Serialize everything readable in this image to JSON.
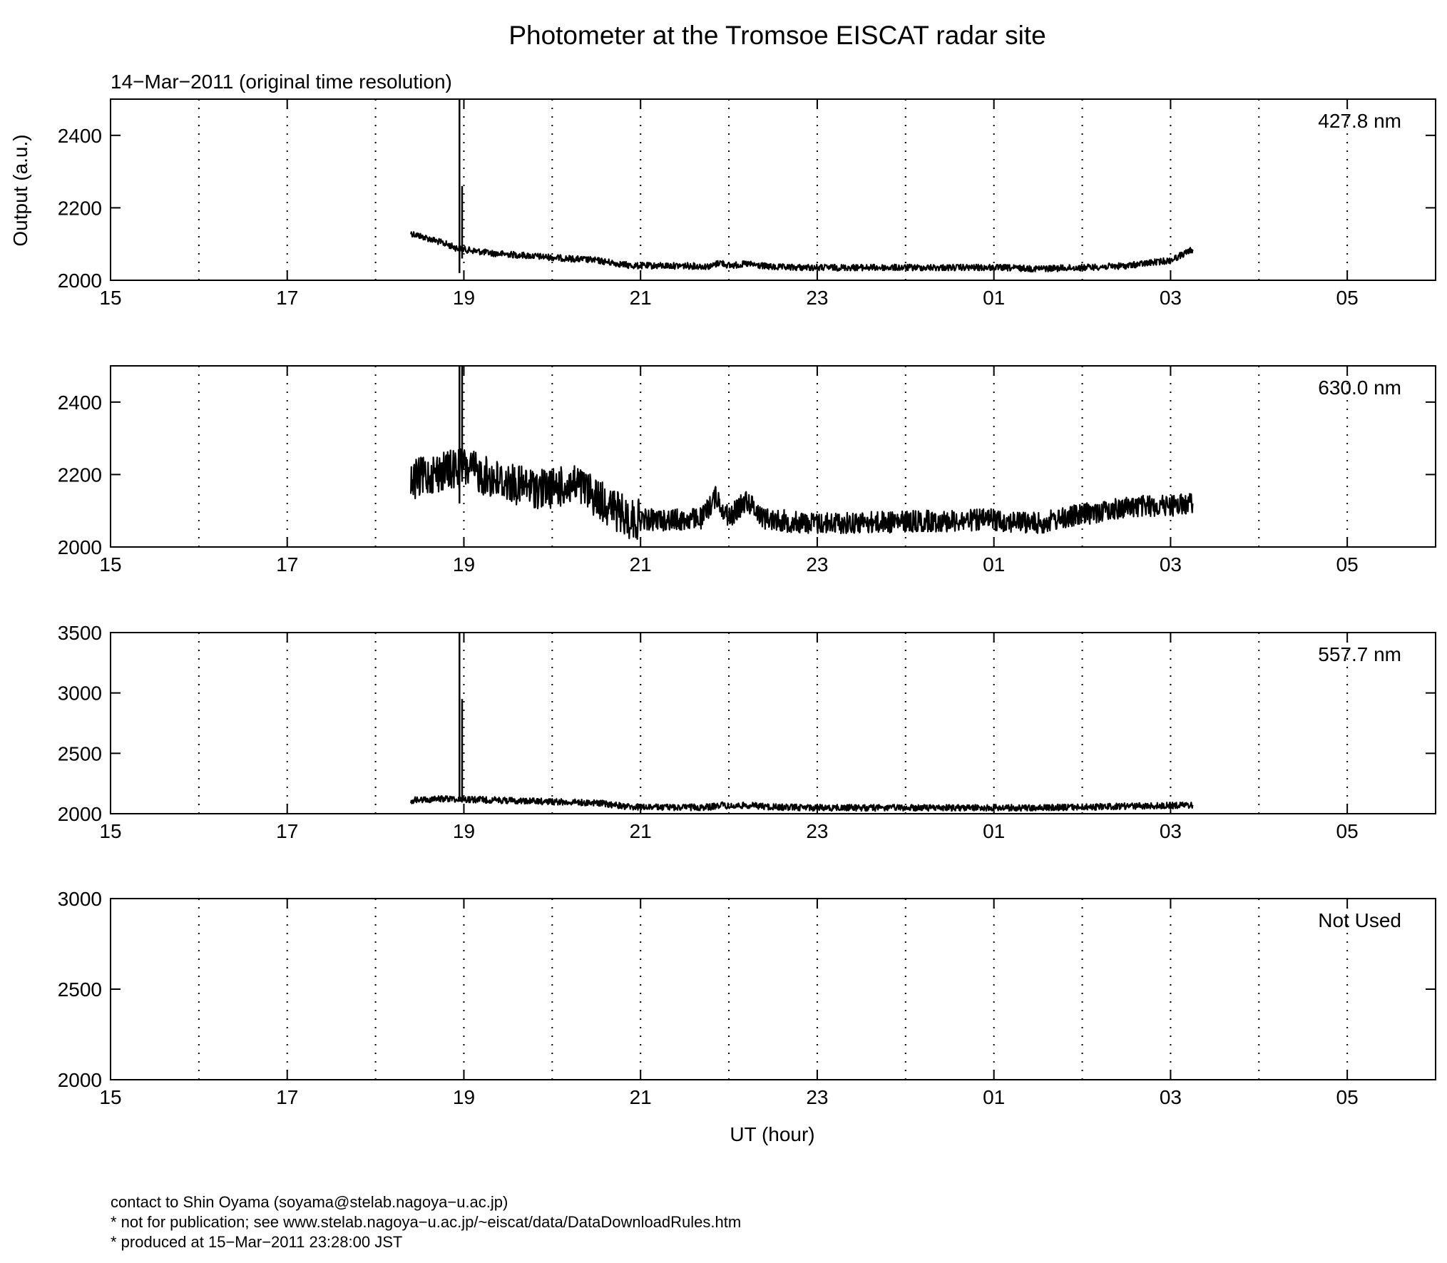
{
  "chart_data": {
    "type": "line",
    "title": "Photometer at the Tromsoe EISCAT radar site",
    "subtitle": "14−Mar−2011 (original time resolution)",
    "ylabel": "Output (a.u.)",
    "xlabel": "UT (hour)",
    "x_range_hours": [
      15,
      30
    ],
    "x_ticks": [
      {
        "t": 15,
        "label": "15"
      },
      {
        "t": 17,
        "label": "17"
      },
      {
        "t": 19,
        "label": "19"
      },
      {
        "t": 21,
        "label": "21"
      },
      {
        "t": 23,
        "label": "23"
      },
      {
        "t": 25,
        "label": "01"
      },
      {
        "t": 27,
        "label": "03"
      },
      {
        "t": 29,
        "label": "05"
      }
    ],
    "grid": "vertical dotted lines at every hour",
    "line_color": "#000000",
    "panels": [
      {
        "label": "427.8 nm",
        "ylim": [
          2000,
          2500
        ],
        "yticks": [
          2000,
          2200,
          2400
        ],
        "show_ylabel": true,
        "series": [
          {
            "x": [
              18.4,
              18.6,
              18.8,
              18.9,
              19.0,
              19.3,
              19.6,
              20.0,
              20.5,
              20.9,
              21.5,
              21.8,
              21.9,
              22.0,
              22.2,
              22.5,
              23.0,
              24.0,
              25.0,
              25.5,
              26.0,
              26.5,
              27.0,
              27.25
            ],
            "y": [
              2130,
              2115,
              2100,
              2090,
              2085,
              2075,
              2070,
              2063,
              2055,
              2040,
              2040,
              2038,
              2050,
              2040,
              2045,
              2036,
              2035,
              2035,
              2035,
              2032,
              2035,
              2040,
              2055,
              2085
            ]
          },
          {
            "x": [
              18.95,
              18.95
            ],
            "y": [
              2020,
              2500
            ]
          },
          {
            "x": [
              18.98,
              18.98
            ],
            "y": [
              2060,
              2260
            ]
          }
        ]
      },
      {
        "label": "630.0 nm",
        "ylim": [
          2000,
          2500
        ],
        "yticks": [
          2000,
          2200,
          2400
        ],
        "show_ylabel": false,
        "series": [
          {
            "x": [
              18.4,
              18.6,
              18.8,
              19.0,
              19.3,
              19.6,
              19.9,
              20.3,
              20.6,
              20.85,
              21.0,
              21.5,
              21.7,
              21.85,
              22.0,
              22.2,
              22.4,
              22.7,
              23.0,
              24.0,
              25.0,
              25.5,
              26.0,
              26.5,
              27.0,
              27.25
            ],
            "y": [
              2180,
              2200,
              2210,
              2220,
              2190,
              2170,
              2160,
              2170,
              2120,
              2080,
              2075,
              2075,
              2080,
              2140,
              2080,
              2130,
              2080,
              2070,
              2065,
              2070,
              2075,
              2065,
              2090,
              2110,
              2115,
              2120
            ]
          },
          {
            "x": [
              18.95,
              18.95
            ],
            "y": [
              2120,
              2500
            ]
          },
          {
            "x": [
              18.98,
              18.98
            ],
            "y": [
              2180,
              2500
            ]
          }
        ]
      },
      {
        "label": "557.7 nm",
        "ylim": [
          2000,
          3500
        ],
        "yticks": [
          2000,
          2500,
          3000,
          3500
        ],
        "show_ylabel": false,
        "series": [
          {
            "x": [
              18.4,
              18.8,
              19.0,
              19.5,
              20.0,
              20.5,
              20.9,
              21.5,
              21.8,
              21.9,
              22.0,
              22.2,
              22.5,
              23.0,
              24.0,
              25.0,
              25.5,
              26.0,
              26.5,
              27.0,
              27.25
            ],
            "y": [
              2110,
              2125,
              2120,
              2110,
              2100,
              2090,
              2055,
              2052,
              2055,
              2075,
              2060,
              2070,
              2055,
              2050,
              2048,
              2050,
              2048,
              2055,
              2062,
              2068,
              2072
            ]
          },
          {
            "x": [
              18.95,
              18.95
            ],
            "y": [
              2100,
              3500
            ]
          },
          {
            "x": [
              18.98,
              18.98
            ],
            "y": [
              2100,
              2950
            ]
          }
        ]
      },
      {
        "label": "Not Used",
        "ylim": [
          2000,
          3000
        ],
        "yticks": [
          2000,
          2500,
          3000
        ],
        "show_ylabel": false,
        "series": []
      }
    ]
  },
  "footer": {
    "contact": "contact to Shin Oyama (soyama@stelab.nagoya−u.ac.jp)",
    "notice": "* not for publication; see www.stelab.nagoya−u.ac.jp/~eiscat/data/DataDownloadRules.htm",
    "produced": "* produced at 15−Mar−2011 23:28:00 JST"
  }
}
